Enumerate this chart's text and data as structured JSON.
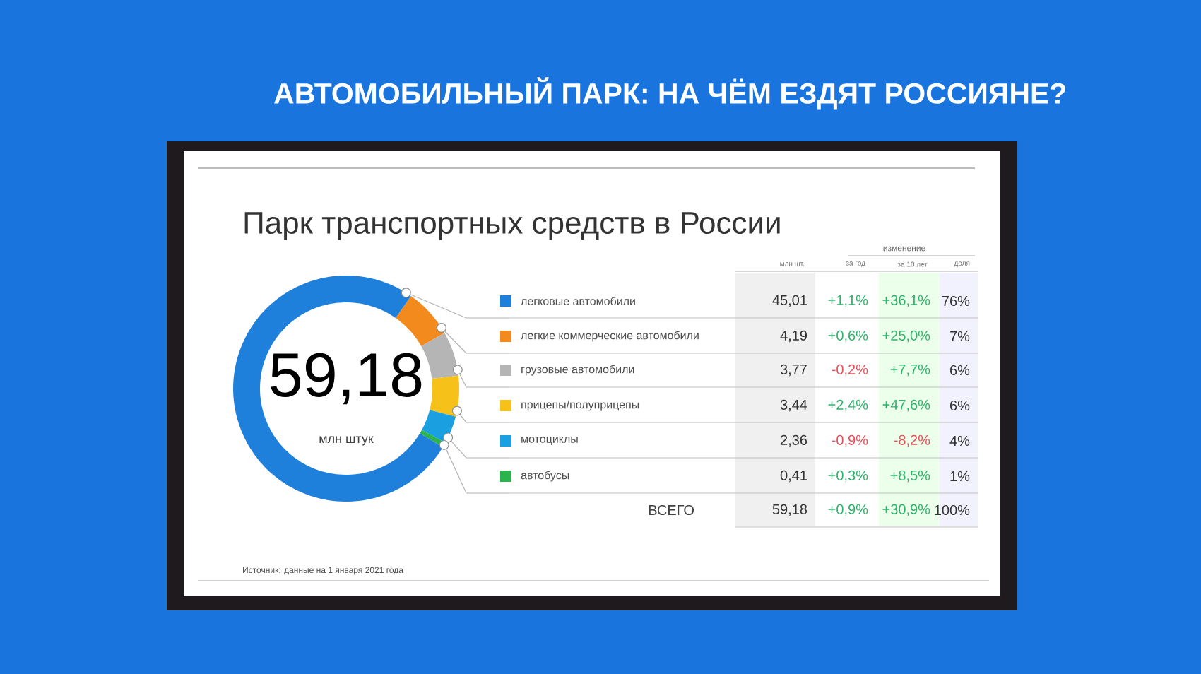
{
  "chart_data": {
    "type": "donut",
    "title": "АВТОМОБИЛЬНЫЙ ПАРК: НА ЧЁМ ЕЗДЯТ РОССИЯНЕ?",
    "subtitle": "Парк транспортных средств в России",
    "categories": [
      "легковые автомобили",
      "легкие коммерческие автомобили",
      "грузовые автомобили",
      "прицепы/полуприцепы",
      "мотоциклы",
      "автобусы"
    ],
    "values": [
      45.01,
      4.19,
      3.77,
      3.44,
      2.36,
      0.41
    ],
    "colors": [
      "#1f80dc",
      "#f28a1e",
      "#b5b5b5",
      "#f6c21a",
      "#1a9fe0",
      "#2db34e"
    ],
    "legend": "right",
    "value_labels": [
      "45,01",
      "4,19",
      "3,77",
      "3,44",
      "2,36",
      "0,41"
    ],
    "annotations": [
      "59,18",
      "млн штук",
      "изменение",
      "млн шт.",
      "за год",
      "за 10 лет",
      "доля",
      "+1,1%",
      "+0,6%",
      "-0,2%",
      "+2,4%",
      "-0,9%",
      "+0,3%",
      "+36,1%",
      "+25,0%",
      "+7,7%",
      "+47,6%",
      "-8,2%",
      "+8,5%",
      "76%",
      "7%",
      "6%",
      "6%",
      "4%",
      "1%",
      "ВСЕГО",
      "59,18",
      "+0,9%",
      "+30,9%",
      "100%",
      "Источник: данные на 1 января 2021 года"
    ]
  }
}
